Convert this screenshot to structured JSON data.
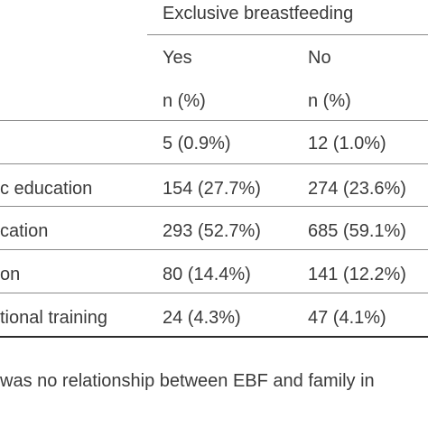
{
  "header": {
    "group": "Exclusive breastfeeding",
    "col_yes": "Yes",
    "col_no": "No",
    "unit_yes": "n (%)",
    "unit_no": "n (%)"
  },
  "rows": [
    {
      "label": "",
      "yes": "5 (0.9%)",
      "no": "12 (1.0%)"
    },
    {
      "label": "c education",
      "yes": "154 (27.7%)",
      "no": "274 (23.6%)"
    },
    {
      "label": "cation",
      "yes": "293 (52.7%)",
      "no": "685 (59.1%)"
    },
    {
      "label": "on",
      "yes": "80 (14.4%)",
      "no": "141 (12.2%)"
    },
    {
      "label": "tional training",
      "yes": "24 (4.3%)",
      "no": "47 (4.1%)"
    }
  ],
  "footnote": "was no relationship between EBF and family in"
}
